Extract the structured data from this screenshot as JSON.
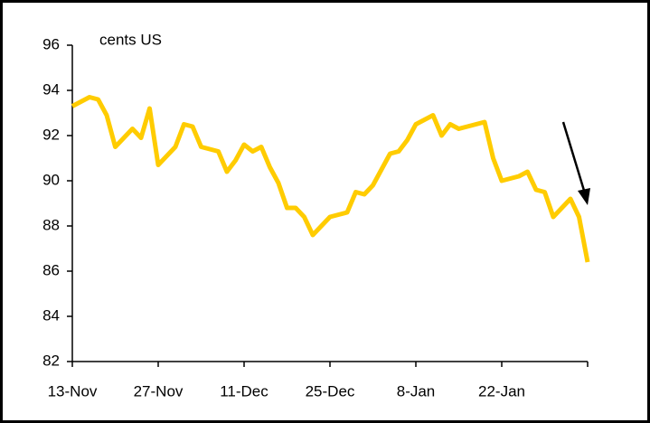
{
  "chart_data": {
    "type": "line",
    "annotation": "cents US",
    "categories": [
      "13-Nov",
      null,
      null,
      null,
      null,
      null,
      null,
      null,
      null,
      null,
      "27-Nov",
      null,
      null,
      null,
      null,
      null,
      null,
      null,
      null,
      null,
      "11-Dec",
      null,
      null,
      null,
      null,
      null,
      null,
      null,
      null,
      null,
      "25-Dec",
      null,
      null,
      null,
      null,
      null,
      null,
      null,
      null,
      null,
      "8-Jan",
      null,
      null,
      null,
      null,
      null,
      null,
      null,
      null,
      null,
      "22-Jan",
      null,
      null,
      null,
      null,
      null,
      null,
      null,
      null,
      null,
      null
    ],
    "series": [
      {
        "color": "#ffcc00",
        "values": [
          93.3,
          93.5,
          93.7,
          93.6,
          92.9,
          91.5,
          91.9,
          92.3,
          91.9,
          93.2,
          90.7,
          91.1,
          91.5,
          92.5,
          92.4,
          91.5,
          91.4,
          91.3,
          90.4,
          90.9,
          91.6,
          91.3,
          91.5,
          90.6,
          89.9,
          88.8,
          88.8,
          88.4,
          87.6,
          88.0,
          88.4,
          88.5,
          88.6,
          89.5,
          89.4,
          89.8,
          90.5,
          91.2,
          91.3,
          91.8,
          92.5,
          92.7,
          92.9,
          92.0,
          92.5,
          92.3,
          92.4,
          92.5,
          92.6,
          91.0,
          90.0,
          90.1,
          90.2,
          90.4,
          89.6,
          89.5,
          88.4,
          88.8,
          89.2,
          88.4,
          86.4
        ]
      }
    ],
    "ylim": [
      82,
      96
    ],
    "yticks": [
      82,
      84,
      86,
      88,
      90,
      92,
      94,
      96
    ]
  }
}
